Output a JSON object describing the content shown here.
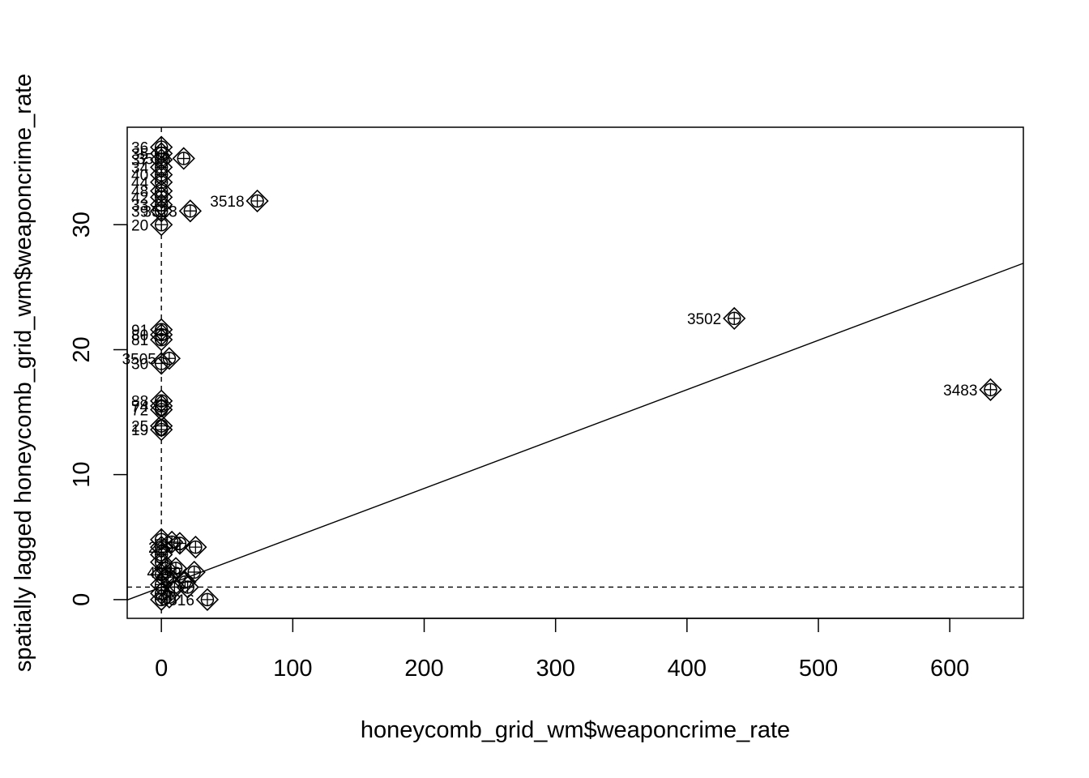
{
  "chart_data": {
    "type": "scatter",
    "title": "",
    "xlabel": "honeycomb_grid_wm$weaponcrime_rate",
    "ylabel": "spatially lagged honeycomb_grid_wm$weaponcrime_rate",
    "xlim": [
      -26,
      656
    ],
    "ylim": [
      -1.5,
      37.8
    ],
    "xticks": [
      0,
      100,
      200,
      300,
      400,
      500,
      600
    ],
    "yticks": [
      0,
      10,
      20,
      30
    ],
    "mean_x": 0,
    "mean_y": 1,
    "regression_line": {
      "intercept": 1.0,
      "slope": 0.0395
    },
    "influential_points": [
      {
        "x": 0,
        "y": 36.2,
        "label": "36"
      },
      {
        "x": 0,
        "y": 35.7,
        "label": "35"
      },
      {
        "x": 0,
        "y": 35.2,
        "label": "37"
      },
      {
        "x": 17,
        "y": 35.3,
        "label": "3516"
      },
      {
        "x": 0,
        "y": 34.6,
        "label": "34"
      },
      {
        "x": 0,
        "y": 34.0,
        "label": "40"
      },
      {
        "x": 0,
        "y": 33.4,
        "label": "44"
      },
      {
        "x": 0,
        "y": 32.7,
        "label": "48"
      },
      {
        "x": 0,
        "y": 32.2,
        "label": "42"
      },
      {
        "x": 0,
        "y": 31.6,
        "label": "33"
      },
      {
        "x": 0,
        "y": 31.1,
        "label": "39"
      },
      {
        "x": 22,
        "y": 31.1,
        "label": "3513"
      },
      {
        "x": 0,
        "y": 30.0,
        "label": "20"
      },
      {
        "x": 73,
        "y": 31.9,
        "label": "3518"
      },
      {
        "x": 0,
        "y": 21.6,
        "label": "91"
      },
      {
        "x": 0,
        "y": 21.2,
        "label": "80"
      },
      {
        "x": 0,
        "y": 20.8,
        "label": "81"
      },
      {
        "x": 6,
        "y": 19.3,
        "label": "3505"
      },
      {
        "x": 0,
        "y": 18.9,
        "label": "30"
      },
      {
        "x": 0,
        "y": 15.9,
        "label": "88"
      },
      {
        "x": 0,
        "y": 15.5,
        "label": "74"
      },
      {
        "x": 0,
        "y": 15.2,
        "label": "72"
      },
      {
        "x": 0,
        "y": 13.9,
        "label": "25"
      },
      {
        "x": 0,
        "y": 13.6,
        "label": "19"
      },
      {
        "x": 436,
        "y": 22.5,
        "label": "3502"
      },
      {
        "x": 631,
        "y": 16.8,
        "label": "3483"
      },
      {
        "x": 0,
        "y": 4.8,
        "label": ""
      },
      {
        "x": 8,
        "y": 4.6,
        "label": ""
      },
      {
        "x": 14,
        "y": 4.5,
        "label": ""
      },
      {
        "x": 26,
        "y": 4.2,
        "label": "2294"
      },
      {
        "x": 0,
        "y": 4.2,
        "label": ""
      },
      {
        "x": 0,
        "y": 3.6,
        "label": ""
      },
      {
        "x": 0,
        "y": 3.0,
        "label": ""
      },
      {
        "x": 3,
        "y": 2.5,
        "label": ""
      },
      {
        "x": 11,
        "y": 2.5,
        "label": ""
      },
      {
        "x": 25,
        "y": 2.2,
        "label": "4249"
      },
      {
        "x": 0,
        "y": 2.0,
        "label": ""
      },
      {
        "x": 5,
        "y": 1.8,
        "label": ""
      },
      {
        "x": 18,
        "y": 1.4,
        "label": ""
      },
      {
        "x": 0,
        "y": 1.2,
        "label": ""
      },
      {
        "x": 10,
        "y": 1.0,
        "label": ""
      },
      {
        "x": 20,
        "y": 1.0,
        "label": ""
      },
      {
        "x": 0,
        "y": 0.5,
        "label": ""
      },
      {
        "x": 6,
        "y": 0.2,
        "label": ""
      },
      {
        "x": 35,
        "y": 0.0,
        "label": "3516"
      },
      {
        "x": 0,
        "y": 0.0,
        "label": ""
      }
    ]
  }
}
